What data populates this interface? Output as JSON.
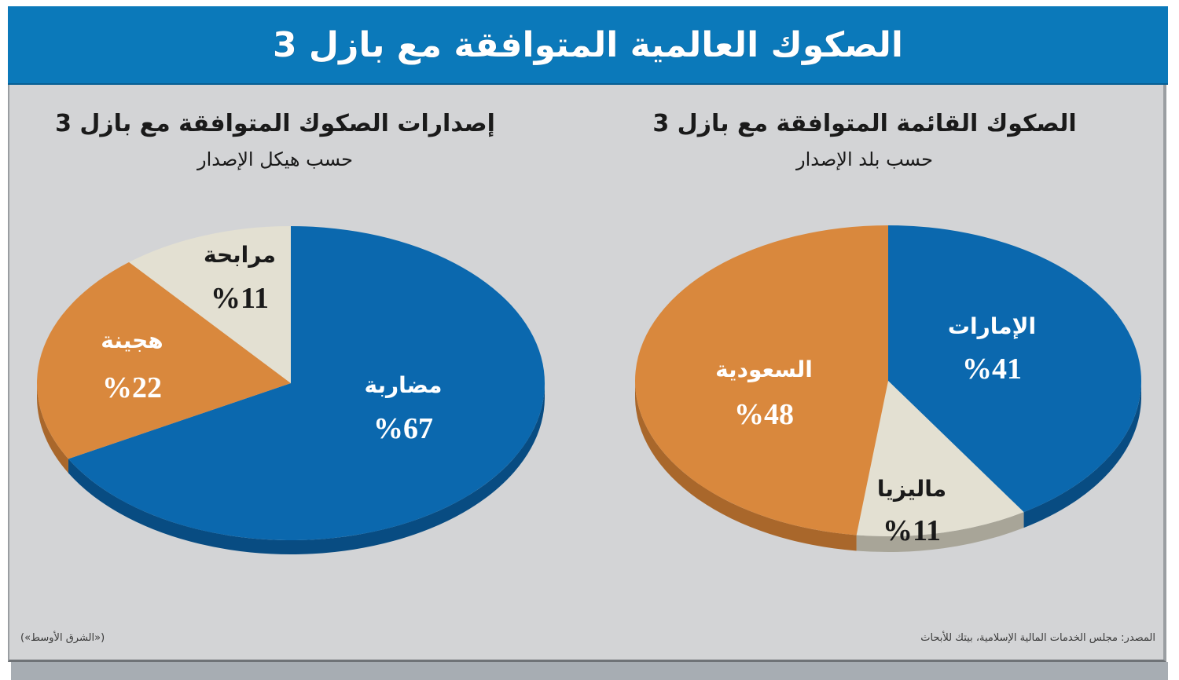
{
  "header": {
    "title": "الصكوك العالمية المتوافقة مع بازل 3"
  },
  "colors": {
    "header_bg": "#0b79ba",
    "panel_bg": "#d3d4d6",
    "blue": "#0b68ae",
    "blue_side": "#084c82",
    "orange": "#d9883d",
    "orange_side": "#a9672b",
    "cream": "#e3e0d2",
    "cream_side": "#a8a598"
  },
  "footer": {
    "source": "المصدر: مجلس الخدمات المالية الإسلامية، بيتك للأبحاث",
    "credit": "(«الشرق الأوسط»)"
  },
  "chart_data": [
    {
      "type": "pie",
      "title": "الصكوك القائمة المتوافقة مع بازل 3",
      "subtitle": "حسب بلد الإصدار",
      "position": "right",
      "categories": [
        "الإمارات",
        "ماليزيا",
        "السعودية"
      ],
      "values": [
        41,
        11,
        48
      ],
      "value_labels": [
        "%41",
        "%11",
        "%48"
      ],
      "slice_colors": [
        "blue",
        "cream",
        "orange"
      ],
      "label_colors": [
        "#ffffff",
        "#1a1a1a",
        "#ffffff"
      ],
      "unit": "%",
      "start_angle": "12 o'clock, clockwise"
    },
    {
      "type": "pie",
      "title": "إصدارات الصكوك المتوافقة مع بازل 3",
      "subtitle": "حسب هيكل الإصدار",
      "position": "left",
      "categories": [
        "مضاربة",
        "هجينة",
        "مرابحة"
      ],
      "values": [
        67,
        22,
        11
      ],
      "value_labels": [
        "%67",
        "%22",
        "%11"
      ],
      "slice_colors": [
        "blue",
        "orange",
        "cream"
      ],
      "label_colors": [
        "#ffffff",
        "#ffffff",
        "#1a1a1a"
      ],
      "unit": "%",
      "start_angle": "12 o'clock, clockwise"
    }
  ]
}
